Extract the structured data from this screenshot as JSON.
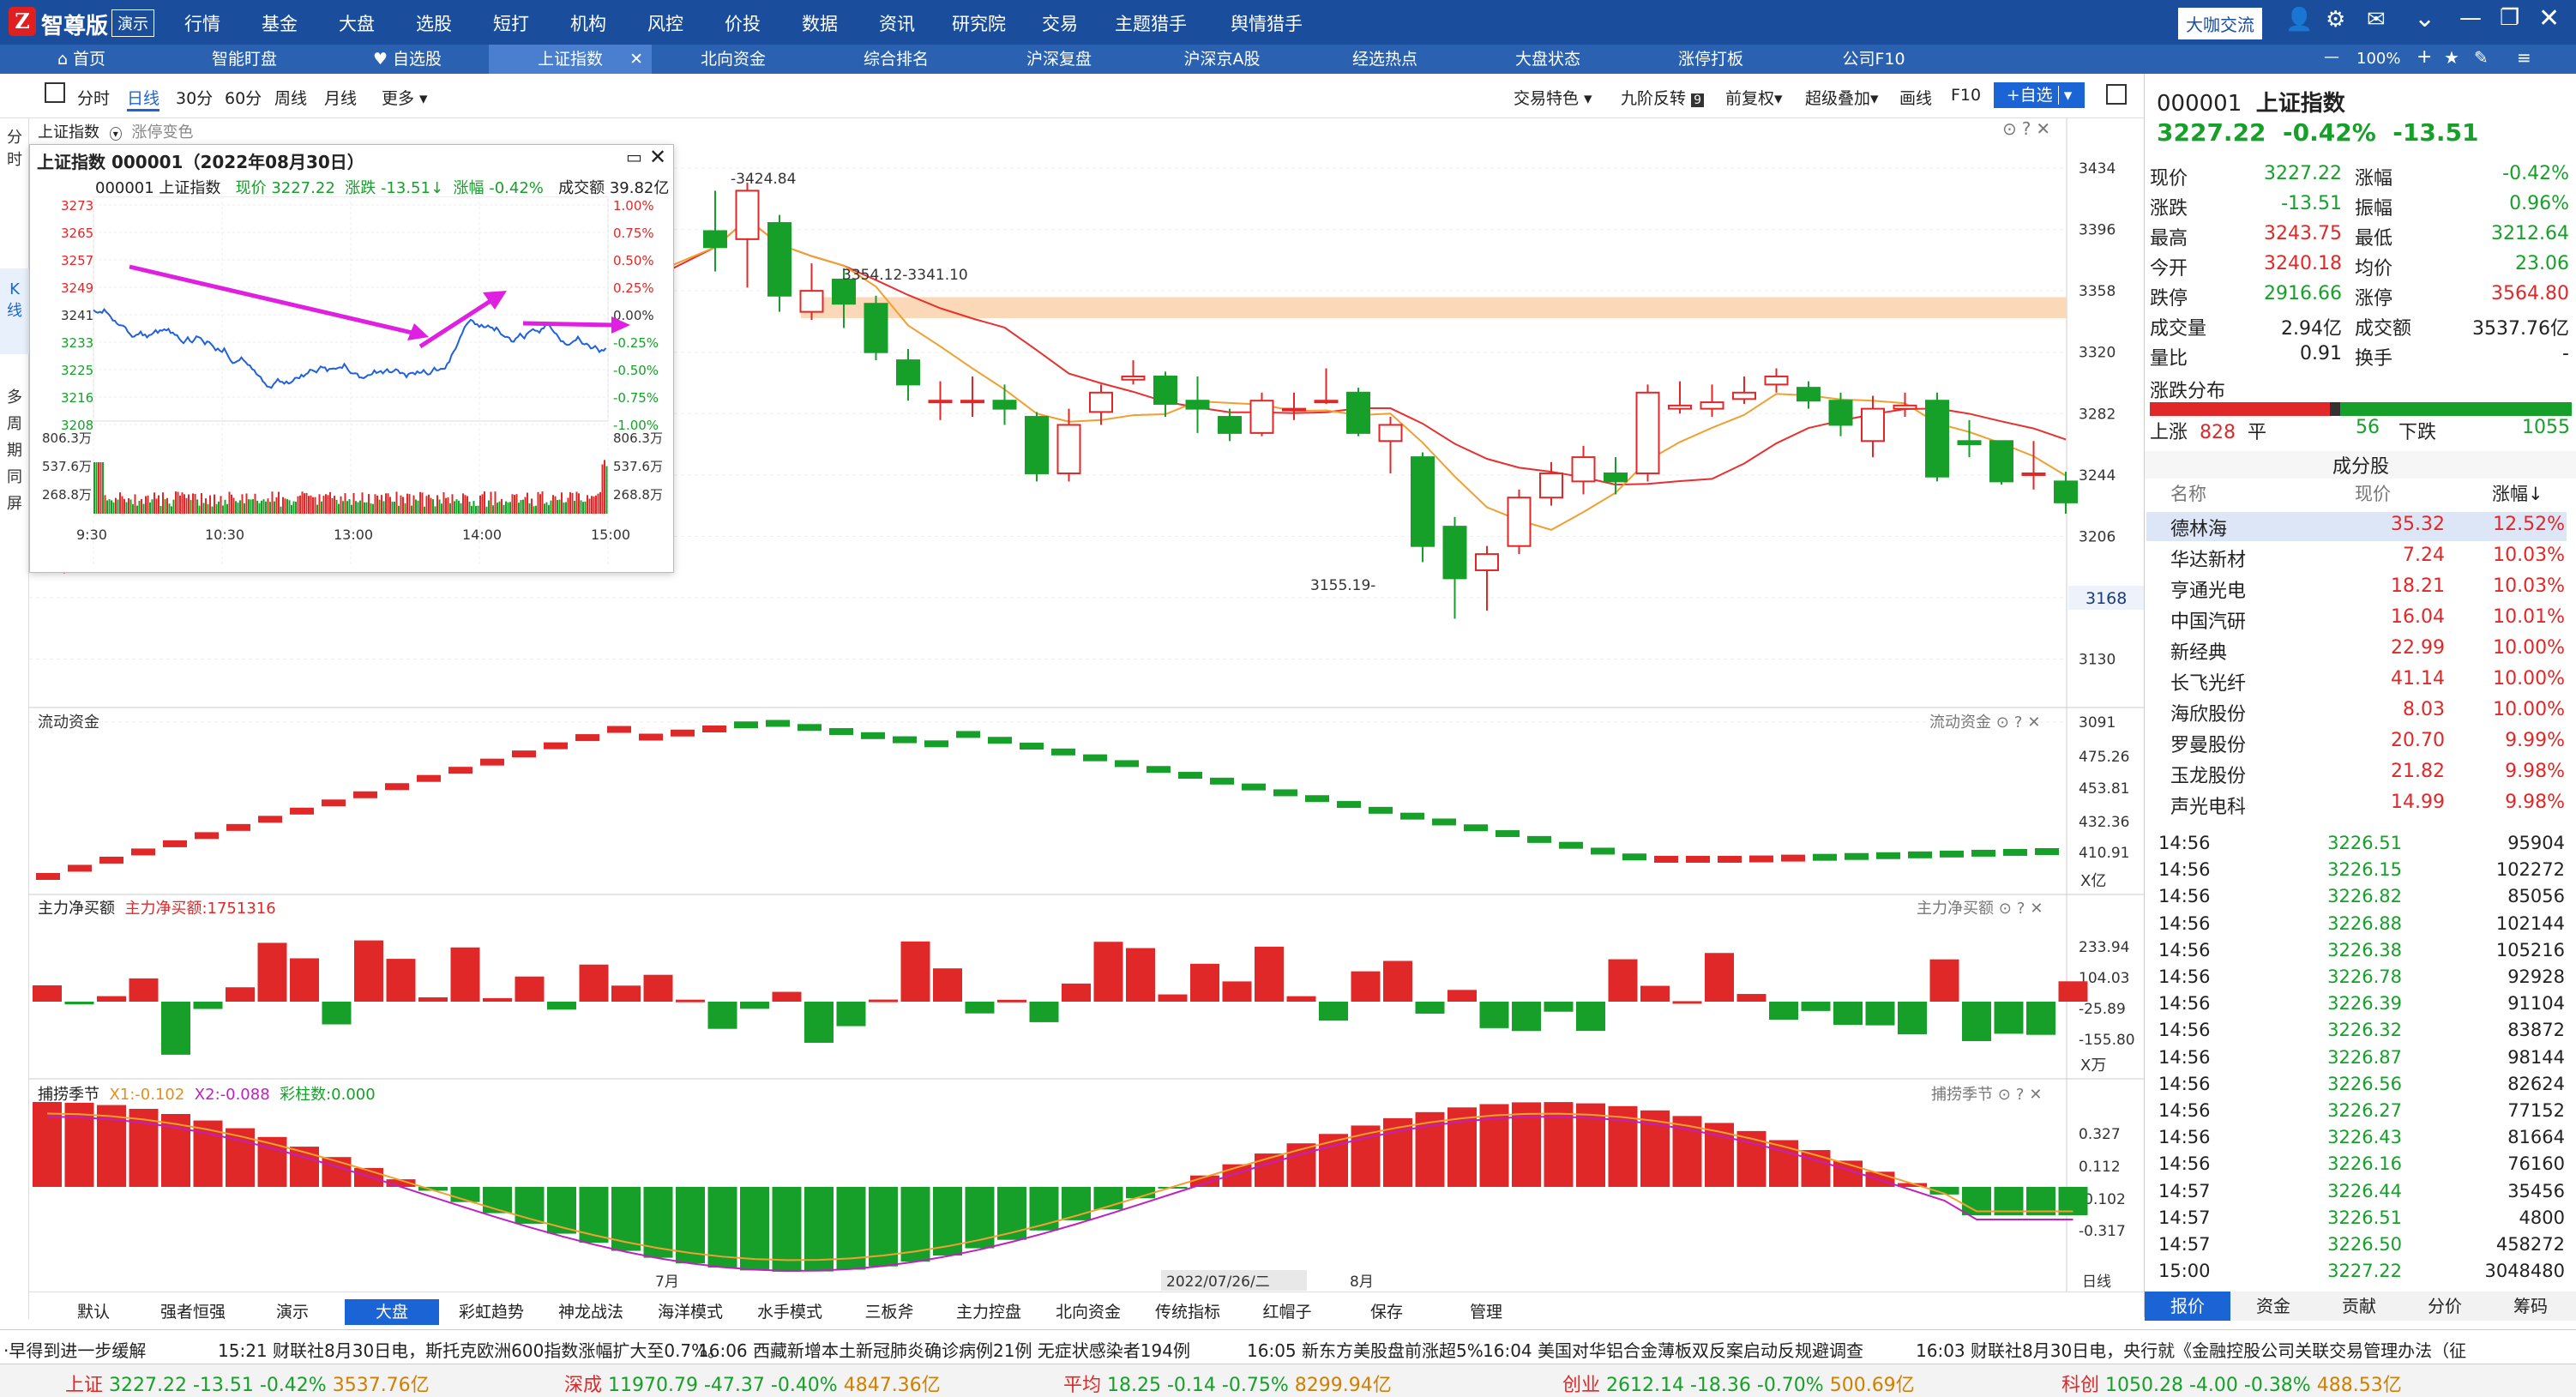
{
  "title_bar": {
    "app_name": "智尊版",
    "badge": "演示",
    "menus": [
      "行情",
      "基金",
      "大盘",
      "选股",
      "短打",
      "机构",
      "风控",
      "价投",
      "数据",
      "资讯",
      "研究院",
      "交易",
      "主题猎手",
      "舆情猎手"
    ],
    "right_button": "大咖交流",
    "zoom": "100%"
  },
  "tabs": [
    "首页",
    "智能盯盘",
    "自选股",
    "上证指数",
    "北向资金",
    "综合排名",
    "沪深复盘",
    "沪深京A股",
    "经选热点",
    "大盘状态",
    "涨停打板",
    "公司F10"
  ],
  "toolbar": {
    "left": [
      "分时",
      "日线",
      "30分",
      "60分",
      "周线",
      "月线",
      "更多"
    ],
    "right": [
      "交易特色",
      "九阶反转",
      "前复权",
      "超级叠加",
      "画线",
      "F10"
    ],
    "add_button": "+自选"
  },
  "left_strip": [
    "分",
    "时",
    "K",
    "线",
    "多",
    "周",
    "期",
    "同",
    "屏"
  ],
  "chart_header": {
    "label": "上证指数",
    "sub": "涨停变色"
  },
  "kline": {
    "y_labels": [
      "3434",
      "3396",
      "3358",
      "3320",
      "3282",
      "3244",
      "3206",
      "3168",
      "3130",
      "3091"
    ],
    "highlight_price": "3168",
    "annotations": [
      "3424.84",
      "3354.12-3341.10",
      "3155.19-"
    ],
    "x_labels": [
      "7月",
      "2022/07/26/二",
      "8月",
      "日线"
    ],
    "candles": [
      [
        3395,
        3385,
        3420,
        3370
      ],
      [
        3390,
        3420,
        3425,
        3360
      ],
      [
        3400,
        3355,
        3405,
        3345
      ],
      [
        3345,
        3358,
        3375,
        3340
      ],
      [
        3365,
        3350,
        3372,
        3335
      ],
      [
        3350,
        3320,
        3355,
        3315
      ],
      [
        3315,
        3300,
        3322,
        3290
      ],
      [
        3290,
        3290,
        3302,
        3278
      ],
      [
        3290,
        3290,
        3305,
        3280
      ],
      [
        3290,
        3285,
        3300,
        3275
      ],
      [
        3280,
        3245,
        3283,
        3240
      ],
      [
        3245,
        3275,
        3285,
        3240
      ],
      [
        3283,
        3295,
        3300,
        3275
      ],
      [
        3303,
        3305,
        3315,
        3300
      ],
      [
        3305,
        3288,
        3308,
        3280
      ],
      [
        3290,
        3285,
        3305,
        3270
      ],
      [
        3280,
        3270,
        3285,
        3265
      ],
      [
        3270,
        3290,
        3295,
        3268
      ],
      [
        3285,
        3285,
        3295,
        3278
      ],
      [
        3290,
        3290,
        3310,
        3288
      ],
      [
        3295,
        3270,
        3298,
        3268
      ],
      [
        3265,
        3275,
        3280,
        3245
      ],
      [
        3255,
        3200,
        3258,
        3190
      ],
      [
        3212,
        3180,
        3218,
        3155
      ],
      [
        3185,
        3195,
        3200,
        3160
      ],
      [
        3200,
        3230,
        3235,
        3195
      ],
      [
        3230,
        3245,
        3252,
        3225
      ],
      [
        3240,
        3255,
        3262,
        3232
      ],
      [
        3245,
        3240,
        3255,
        3232
      ],
      [
        3245,
        3295,
        3300,
        3240
      ],
      [
        3285,
        3287,
        3302,
        3282
      ],
      [
        3285,
        3289,
        3300,
        3280
      ],
      [
        3291,
        3295,
        3305,
        3288
      ],
      [
        3300,
        3305,
        3310,
        3295
      ],
      [
        3298,
        3290,
        3302,
        3285
      ],
      [
        3290,
        3275,
        3295,
        3268
      ],
      [
        3265,
        3285,
        3293,
        3255
      ],
      [
        3285,
        3287,
        3295,
        3280
      ],
      [
        3290,
        3243,
        3295,
        3240
      ],
      [
        3265,
        3263,
        3278,
        3255
      ],
      [
        3265,
        3240,
        3265,
        3238
      ],
      [
        3245,
        3245,
        3265,
        3235
      ],
      [
        3240,
        3227,
        3246,
        3220
      ]
    ]
  },
  "flow": {
    "title": "流动资金",
    "y_labels": [
      "475.26",
      "453.81",
      "432.36",
      "410.91"
    ],
    "unit": "X亿"
  },
  "net": {
    "title": "主力净买额",
    "sub": "主力净买额:1751316",
    "y_labels": [
      "233.94",
      "104.03",
      "-25.89",
      "-155.80"
    ],
    "unit": "X万"
  },
  "cycle": {
    "title": "捕捞季节",
    "x1": "X1:-0.102",
    "x2": "X2:-0.088",
    "bars": "彩柱数:0.000",
    "y_labels": [
      "0.327",
      "0.112",
      "-0.102",
      "-0.317"
    ]
  },
  "popup": {
    "title": "上证指数 000001（2022年08月30日）",
    "head": "000001 上证指数",
    "price": "现价 3227.22",
    "chg": "涨跌 -13.51↓",
    "pct": "涨幅 -0.42%",
    "vol": "成交额 39.82亿",
    "left_y": [
      "3273",
      "3265",
      "3257",
      "3249",
      "3241",
      "3233",
      "3225",
      "3216",
      "3208"
    ],
    "right_y": [
      "1.00%",
      "0.75%",
      "0.50%",
      "0.25%",
      "0.00%",
      "-0.25%",
      "-0.50%",
      "-0.75%",
      "-1.00%"
    ],
    "vol_y": [
      "806.3万",
      "537.6万",
      "268.8万"
    ],
    "times": [
      "9:30",
      "10:30",
      "13:00",
      "14:00",
      "15:00"
    ]
  },
  "quote": {
    "code": "000001",
    "name": "上证指数",
    "price": "3227.22",
    "pct": "-0.42%",
    "chg": "-13.51",
    "rows": [
      [
        "现价",
        "3227.22",
        "涨幅",
        "-0.42%"
      ],
      [
        "涨跌",
        "-13.51",
        "振幅",
        "0.96%"
      ],
      [
        "最高",
        "3243.75",
        "最低",
        "3212.64"
      ],
      [
        "今开",
        "3240.18",
        "均价",
        "23.06"
      ],
      [
        "跌停",
        "2916.66",
        "涨停",
        "3564.80"
      ],
      [
        "成交量",
        "2.94亿",
        "成交额",
        "3537.76亿"
      ],
      [
        "量比",
        "0.91",
        "换手",
        "-"
      ]
    ],
    "dist_title": "涨跌分布",
    "up_label": "上涨",
    "up": "828",
    "flat_label": "平",
    "flat": "56",
    "down_label": "下跌",
    "down": "1055",
    "comp_title": "成分股",
    "comp_headers": [
      "名称",
      "现价",
      "涨幅↓"
    ],
    "comps": [
      [
        "德林海",
        "35.32",
        "12.52%"
      ],
      [
        "华达新材",
        "7.24",
        "10.03%"
      ],
      [
        "亨通光电",
        "18.21",
        "10.03%"
      ],
      [
        "中国汽研",
        "16.04",
        "10.01%"
      ],
      [
        "新经典",
        "22.99",
        "10.00%"
      ],
      [
        "长飞光纤",
        "41.14",
        "10.00%"
      ],
      [
        "海欣股份",
        "8.03",
        "10.00%"
      ],
      [
        "罗曼股份",
        "20.70",
        "9.99%"
      ],
      [
        "玉龙股份",
        "21.82",
        "9.98%"
      ],
      [
        "声光电科",
        "14.99",
        "9.98%"
      ]
    ],
    "ticks": [
      [
        "14:56",
        "3226.51",
        "95904"
      ],
      [
        "14:56",
        "3226.15",
        "102272"
      ],
      [
        "14:56",
        "3226.82",
        "85056"
      ],
      [
        "14:56",
        "3226.88",
        "102144"
      ],
      [
        "14:56",
        "3226.38",
        "105216"
      ],
      [
        "14:56",
        "3226.78",
        "92928"
      ],
      [
        "14:56",
        "3226.39",
        "91104"
      ],
      [
        "14:56",
        "3226.32",
        "83872"
      ],
      [
        "14:56",
        "3226.87",
        "98144"
      ],
      [
        "14:56",
        "3226.56",
        "82624"
      ],
      [
        "14:56",
        "3226.27",
        "77152"
      ],
      [
        "14:56",
        "3226.43",
        "81664"
      ],
      [
        "14:56",
        "3226.16",
        "76160"
      ],
      [
        "14:57",
        "3226.44",
        "35456"
      ],
      [
        "14:57",
        "3226.51",
        "4800"
      ],
      [
        "14:57",
        "3226.50",
        "458272"
      ],
      [
        "15:00",
        "3227.22",
        "3048480"
      ]
    ],
    "bottom_tabs": [
      "报价",
      "资金",
      "贡献",
      "分价",
      "筹码"
    ]
  },
  "bottom_tabs": [
    "默认",
    "强者恒强",
    "演示",
    "大盘",
    "彩虹趋势",
    "神龙战法",
    "海洋模式",
    "水手模式",
    "三板斧",
    "主力控盘",
    "北向资金",
    "传统指标",
    "红帽子",
    "保存",
    "管理"
  ],
  "news": [
    "·早得到进一步缓解",
    "15:21 财联社8月30日电，斯托克欧洲600指数涨幅扩大至0.7%。",
    "16:06 西藏新增本土新冠肺炎确诊病例21例 无症状感染者194例",
    "16:05 新东方美股盘前涨超5%",
    "16:04 美国对华铝合金薄板双反案启动反规避调查",
    "16:03 财联社8月30日电，央行就《金融控股公司关联交易管理办法（征"
  ],
  "status": [
    [
      "上证",
      "3227.22",
      "-13.51",
      "-0.42%",
      "3537.76亿"
    ],
    [
      "深成",
      "11970.79",
      "-47.37",
      "-0.40%",
      "4847.36亿"
    ],
    [
      "平均",
      "18.25",
      "-0.14",
      "-0.75%",
      "8299.94亿"
    ],
    [
      "创业",
      "2612.14",
      "-18.36",
      "-0.70%",
      "500.69亿"
    ],
    [
      "科创",
      "1050.28",
      "-4.00",
      "-0.38%",
      "488.53亿"
    ]
  ],
  "colors": {
    "up": "#e02828",
    "down": "#16a02a",
    "brand": "#1a4e9c",
    "accent": "#1a64d6"
  }
}
